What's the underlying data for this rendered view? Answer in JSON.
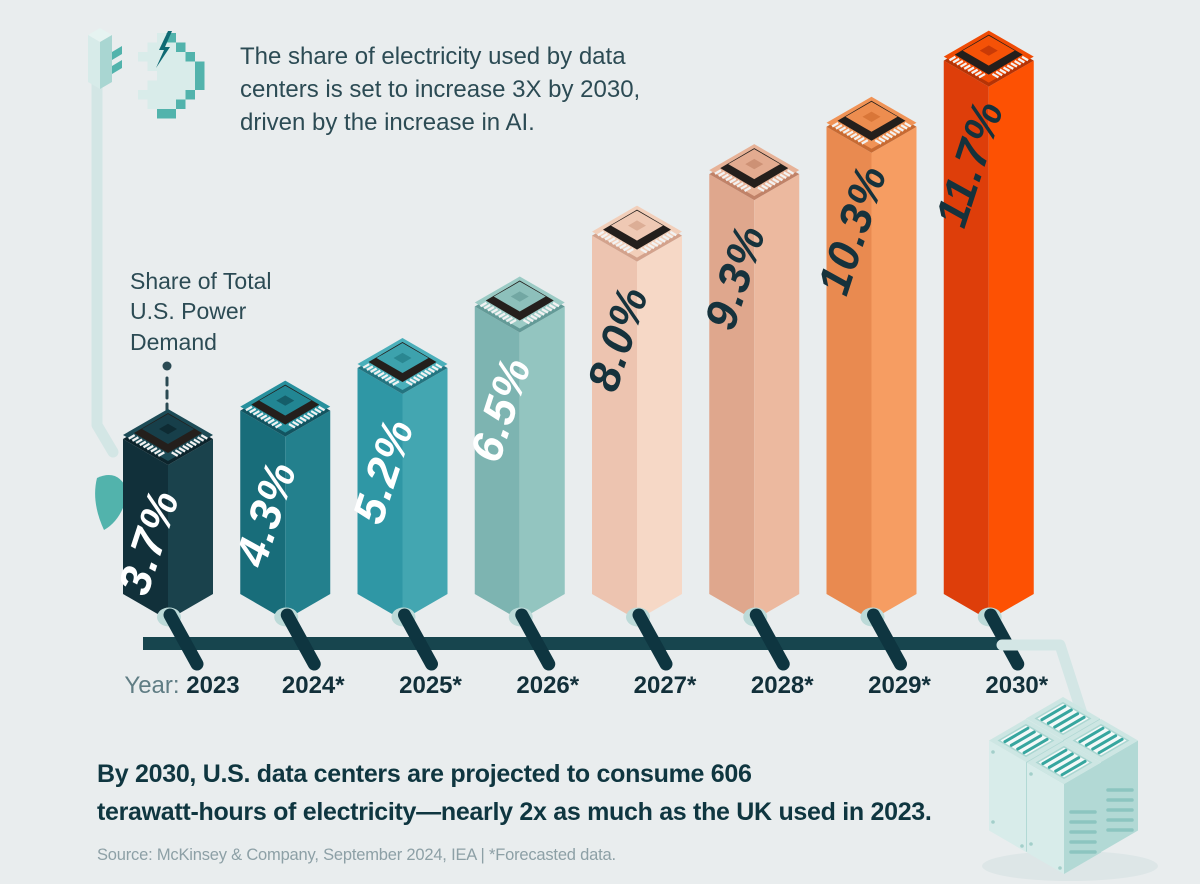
{
  "background": "#e9edee",
  "header": {
    "title": "The share of electricity used by data\ncenters is set to increase 3X by 2030,\ndriven by the increase in AI.",
    "ai_icon": "pixel-brain-with-lightning-icon",
    "plug_icon": "power-plug-icon"
  },
  "chart": {
    "axis_annotation": "Share of Total\nU.S. Power\nDemand",
    "x_axis_prefix": "Year:"
  },
  "chart_data": {
    "type": "bar",
    "title": "The share of electricity used by data centers is set to increase 3X by 2030, driven by the increase in AI.",
    "ylabel": "Share of Total U.S. Power Demand",
    "xlabel": "Year",
    "categories": [
      "2023",
      "2024*",
      "2025*",
      "2026*",
      "2027*",
      "2028*",
      "2029*",
      "2030*"
    ],
    "values": [
      3.7,
      4.3,
      5.2,
      6.5,
      8.0,
      9.3,
      10.3,
      11.7
    ],
    "value_labels": [
      "3.7%",
      "4.3%",
      "5.2%",
      "6.5%",
      "8.0%",
      "9.3%",
      "10.3%",
      "11.7%"
    ],
    "ylim": [
      0,
      12
    ],
    "grid": false,
    "legend_position": "none",
    "bar_style": "isometric-3d-column-with-cpu-chip-cap",
    "baseline_color": "#17454e",
    "leg_color": "#0e3540",
    "grommet_color": "#bcdad8",
    "axis_text_color": "#12303a",
    "axis_prefix_color": "#607d84",
    "bar_colors": [
      {
        "left": "#11303a",
        "right": "#1a424c",
        "top": "#1c4b56",
        "rim": "#0c242c",
        "chip_top": "#173f4a",
        "chip_core": "#0e2b33",
        "label": "#ffffff"
      },
      {
        "left": "#186d7a",
        "right": "#23808d",
        "top": "#27909d",
        "rim": "#125460",
        "chip_top": "#228693",
        "chip_core": "#155e69",
        "label": "#ffffff"
      },
      {
        "left": "#2f97a5",
        "right": "#43a6b1",
        "top": "#4aafba",
        "rim": "#237480",
        "chip_top": "#3da2ad",
        "chip_core": "#2a8791",
        "label": "#ffffff"
      },
      {
        "left": "#7db4b1",
        "right": "#93c5c0",
        "top": "#9bcbc5",
        "rim": "#639a97",
        "chip_top": "#8dc0bb",
        "chip_core": "#72a7a3",
        "label": "#ffffff"
      },
      {
        "left": "#edc4b0",
        "right": "#f6d8c6",
        "top": "#f2cfba",
        "rim": "#d3a28c",
        "chip_top": "#efc9b4",
        "chip_core": "#dcae96",
        "label": "#16323c"
      },
      {
        "left": "#dfa78d",
        "right": "#ecb99f",
        "top": "#e7b297",
        "rim": "#c08268",
        "chip_top": "#e3ab90",
        "chip_core": "#cd9175",
        "label": "#16323c"
      },
      {
        "left": "#e98a50",
        "right": "#f69d62",
        "top": "#f09356",
        "rim": "#c76a32",
        "chip_top": "#ed8d4f",
        "chip_core": "#d97638",
        "label": "#16323c"
      },
      {
        "left": "#de3e0a",
        "right": "#fd5103",
        "top": "#f04b05",
        "rim": "#b63305",
        "chip_top": "#f55207",
        "chip_core": "#c93a06",
        "label": "#16323c"
      }
    ]
  },
  "palette": {
    "pipe": "#d3e6e5",
    "mint": "#d9ecea",
    "teal": "#52b3ac",
    "dark_teal": "#0f6a74",
    "indicator": "#2b4a53",
    "server_face_left": "#d8ecea",
    "server_face_right": "#b2d9d5",
    "server_top": "#cde6e3",
    "server_panel": "#f3f9f8",
    "server_slat": "#37a69f",
    "server_vent": "#8cc5c0",
    "shadow": "#dde6e7"
  },
  "footer": {
    "statement": "By 2030, U.S. data centers are projected to consume 606\nterawatt-hours of electricity—nearly 2x as much as the UK used in 2023.",
    "source": "Source: McKinsey & Company, September 2024, IEA | *Forecasted data.",
    "server_icon": "data-center-server-racks-illustration"
  }
}
